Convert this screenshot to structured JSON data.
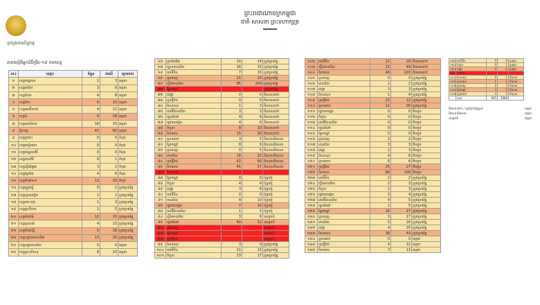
{
  "header": {
    "kingdom": "ព្រះរាជាណាចក្រកម្ពុជា",
    "motto": "ជាតិ សាសនា ព្រះមហាក្សត្រ",
    "emblem_caption": "ក្រសួងពាណិជ្ជកម្ម",
    "doc_title": "តារាងស្ថិតិអ្នកជំងឺកូវីដ-១៩ តាមខេត្ត"
  },
  "table1": {
    "headers": [
      "ល.រ",
      "ឈ្មោះ",
      "ចំនួន",
      "ករណី",
      "ស្ថានភាព"
    ],
    "rows": [
      {
        "no": "១",
        "name": "ខេត្តកណ្ដាល",
        "a": "1",
        "b": "3",
        "s": "ធម្មតា",
        "tone": "light"
      },
      {
        "no": "២",
        "name": "ខេត្តតាកែវ",
        "a": "3",
        "b": "6",
        "s": "ធម្មតា",
        "tone": "light"
      },
      {
        "no": "៣",
        "name": "ខេត្តកំពត",
        "a": "4",
        "b": "8",
        "s": "ធម្មតា",
        "tone": "light"
      },
      {
        "no": "៤",
        "name": "ខេត្តកែប",
        "a": "6",
        "b": "10",
        "s": "ធម្មតា",
        "tone": "orange"
      },
      {
        "no": "៥",
        "name": "ខេត្តពោធិ៍សាត់",
        "a": "4",
        "b": "11",
        "s": "ធម្មតា",
        "tone": "light"
      },
      {
        "no": "៦",
        "name": "ខេត្តពុំ",
        "a": "6",
        "b": "16",
        "s": "ធម្មតា",
        "tone": "orange"
      },
      {
        "no": "៧",
        "name": "ខេត្តបាត់ដំបង",
        "a": "18",
        "b": "33",
        "s": "ធម្មតា",
        "tone": "light"
      },
      {
        "no": "៨",
        "name": "ភ្នំពេញ",
        "a": "45",
        "b": "80",
        "s": "ធម្មតា",
        "tone": "orange"
      },
      {
        "no": "៩",
        "name": "ខេត្តក្រចេះ",
        "a": "0",
        "b": "0",
        "s": "កំពុង",
        "tone": "light"
      },
      {
        "no": "១០",
        "name": "ខេត្តសៀមរាប",
        "a": "0",
        "b": "0",
        "s": "កំពុង",
        "tone": "light"
      },
      {
        "no": "១១",
        "name": "ខេត្តមណ្ឌលគិរី",
        "a": "0",
        "b": "0",
        "s": "កំពុង",
        "tone": "light"
      },
      {
        "no": "១២",
        "name": "ខេត្តរតនគិរី",
        "a": "0",
        "b": "1",
        "s": "កំពុង",
        "tone": "light"
      },
      {
        "no": "១៣",
        "name": "ខេត្តស្ទឹងត្រែង",
        "a": "3",
        "b": "2",
        "s": "កំពុង",
        "tone": "light"
      },
      {
        "no": "១៤",
        "name": "ខេត្តព្រៃវែង",
        "a": "4",
        "b": "6",
        "s": "កំពុង",
        "tone": "light"
      },
      {
        "no": "១៥",
        "name": "ខេត្តកំពង់ចាម",
        "a": "12",
        "b": "15",
        "s": "កំពុង",
        "tone": "orange"
      },
      {
        "no": "១៦",
        "name": "ខេត្តត្បូងឃ្មុំ",
        "a": "0",
        "b": "1",
        "s": "ប្រុងប្រយ័ត្ន",
        "tone": "light"
      },
      {
        "no": "១៧",
        "name": "ខេត្តស្វាយរៀង",
        "a": "1",
        "b": "1",
        "s": "ប្រុងប្រយ័ត្ន",
        "tone": "light"
      },
      {
        "no": "១៨",
        "name": "ខេត្តកោះកុង",
        "a": "1",
        "b": "3",
        "s": "ប្រុងប្រយ័ត្ន",
        "tone": "light"
      },
      {
        "no": "១៩",
        "name": "ខេត្តព្រះវិហារ",
        "a": "1",
        "b": "5",
        "s": "ប្រុងប្រយ័ត្ន",
        "tone": "light"
      },
      {
        "no": "២០",
        "name": "ខេត្តកំពង់ធំ",
        "a": "12",
        "b": "15",
        "s": "ប្រុងប្រយ័ត្ន",
        "tone": "orange"
      },
      {
        "no": "២១",
        "name": "ខេត្តពុរសាត់",
        "a": "4",
        "b": "15",
        "s": "ប្រុងប្រយ័ត្ន",
        "tone": "light"
      },
      {
        "no": "២២",
        "name": "ខេត្តកំពង់ស្ពឺ",
        "a": "5",
        "b": "16",
        "s": "ប្រុងប្រយ័ត្ន",
        "tone": "orange"
      },
      {
        "no": "២៣",
        "name": "ខេត្តបន្ទាយមានជ័យ",
        "a": "13",
        "b": "20",
        "s": "ប្រុងប្រយ័ត្ន",
        "tone": "orange"
      },
      {
        "no": "២៤",
        "name": "ខេត្តឧត្តរមានជ័យ",
        "a": "0",
        "b": "0",
        "s": "ធម្មតា",
        "tone": "light"
      },
      {
        "no": "២៥",
        "name": "ខេត្តព្រះសីហនុ",
        "a": "8",
        "b": "20",
        "s": "ធម្មតា",
        "tone": "light"
      }
    ]
  },
  "table2": {
    "rows": [
      {
        "no": "៦៦",
        "name": "ត្រពាំងវែង",
        "a": "10",
        "b": "14",
        "s": "ប្រុងប្រយ័ត្ន",
        "tone": "light"
      },
      {
        "no": "៦៧",
        "name": "ស្ពានមានជ័យ",
        "a": "16",
        "b": "15",
        "s": "ប្រុងប្រយ័ត្ន",
        "tone": "light"
      },
      {
        "no": "៦៨",
        "name": "ពោធិ៍ចិន",
        "a": "7",
        "b": "20",
        "s": "ប្រុងប្រយ័ត្ន",
        "tone": "light"
      },
      {
        "no": "៦៩",
        "name": "ដូនពេញ",
        "a": "21",
        "b": "24",
        "s": "ប្រុងប្រយ័ត្ន",
        "tone": "orange"
      },
      {
        "no": "៧០",
        "name": "ស្ទឹងមានជ័យ",
        "a": "85",
        "b": "254",
        "s": "ប្រុងប្រយ័ត្ន",
        "tone": "orange"
      },
      {
        "no": "៧១",
        "name": "ព្រែកព្នៅ",
        "a": "",
        "b": "",
        "s": "ប្រុងប្រយ័ត្ន",
        "tone": "red"
      },
      {
        "no": "៧២",
        "name": "ដង្កោ",
        "a": "0",
        "b": "0",
        "s": "ពិសេសពាក់",
        "tone": "light"
      },
      {
        "no": "៧៣",
        "name": "ឬស្សីកែវ",
        "a": "0",
        "b": "0",
        "s": "ពិសេសពាក់",
        "tone": "light"
      },
      {
        "no": "៧៤",
        "name": "សែនសុខ",
        "a": "1",
        "b": "3",
        "s": "ពិសេសពាក់",
        "tone": "light"
      },
      {
        "no": "៧៥",
        "name": "ពោធិ៍សែនជ័យ",
        "a": "3",
        "b": "3",
        "s": "ពិសេសពាក់",
        "tone": "light"
      },
      {
        "no": "៧៦",
        "name": "ច្បារអំពៅ",
        "a": "4",
        "b": "6",
        "s": "ពិសេសពាក់",
        "tone": "light"
      },
      {
        "no": "៧៧",
        "name": "ជ្រោយចង្វារ",
        "a": "4",
        "b": "8",
        "s": "ពិសេសពាក់",
        "tone": "light"
      },
      {
        "no": "៧៨",
        "name": "កំបូល",
        "a": "8",
        "b": "10",
        "s": "ពិសេសពាក់",
        "tone": "orange"
      },
      {
        "no": "៧៩",
        "name": "ចំការមន",
        "a": "15",
        "b": "30",
        "s": "ពិសេសពាក់",
        "tone": "orange"
      },
      {
        "no": "៨០",
        "name": "ទួលគោក",
        "a": "3",
        "b": "5",
        "s": "ពិសេសពិសេស",
        "tone": "light"
      },
      {
        "no": "៨១",
        "name": "ព្រែកព្នៅ",
        "a": "8",
        "b": "9",
        "s": "ពិសេសពិសេស",
        "tone": "light"
      },
      {
        "no": "៨២",
        "name": "ដូនពេញ",
        "a": "0",
        "b": "5",
        "s": "ពិសេសពិសេស",
        "tone": "light"
      },
      {
        "no": "៨៣",
        "name": "មានជ័យ",
        "a": "18",
        "b": "22",
        "s": "ពិសេសពិសេស",
        "tone": "orange"
      },
      {
        "no": "៨៤",
        "name": "ឫស្សីកែវ",
        "a": "42",
        "b": "60",
        "s": "ពិសេសពិសេស",
        "tone": "orange"
      },
      {
        "no": "៨៥",
        "name": "ចំការមន",
        "a": "45",
        "b": "57",
        "s": "ពិសេសពិសេស",
        "tone": "orange"
      },
      {
        "no": "៨៦",
        "name": "សែនសុខ",
        "a": "",
        "b": "",
        "s": "",
        "tone": "red"
      },
      {
        "no": "៨៧",
        "name": "ព្រែកព្នៅ",
        "a": "0",
        "b": "0",
        "s": "ប៉ុទ្ធាស៊ូ",
        "tone": "light"
      },
      {
        "no": "៨៨",
        "name": "កំបូល",
        "a": "4",
        "b": "4",
        "s": "ប៉ុទ្ធាស៊ូ",
        "tone": "light"
      },
      {
        "no": "៨៩",
        "name": "ដង្កោ",
        "a": "3",
        "b": "6",
        "s": "ប៉ុទ្ធាស៊ូ",
        "tone": "light"
      },
      {
        "no": "៩០",
        "name": "ពោធិ៍ចិន",
        "a": "0",
        "b": "0",
        "s": "ប៉ុទ្ធាស៊ូ",
        "tone": "light"
      },
      {
        "no": "៩១",
        "name": "មានជ័យ",
        "a": "4",
        "b": "10",
        "s": "ប៉ុទ្ធាស៊ូ",
        "tone": "light"
      },
      {
        "no": "៩២",
        "name": "ជ្រោយចង្វារ",
        "a": "7",
        "b": "10",
        "s": "ប៉ុទ្ធាស៊ូ",
        "tone": "orange"
      },
      {
        "no": "៩៣",
        "name": "ពោធិ៍សែនជ័យ",
        "a": "1",
        "b": "5",
        "s": "ប៉ុទ្ធាស៊ូ",
        "tone": "light"
      },
      {
        "no": "៩៤",
        "name": "ស្ទឹងមានជ័យ",
        "a": "3",
        "b": "6",
        "s": "ឧស្សាហ៍",
        "tone": "light"
      },
      {
        "no": "៩៥",
        "name": "ច្បារអំពៅ",
        "a": "40",
        "b": "52",
        "s": "ឧស្សាហ៍",
        "tone": "orange"
      },
      {
        "no": "៩៦",
        "name": "ដូនពេញ",
        "a": "",
        "b": "",
        "s": "ឧស្សាហ៍",
        "tone": "red"
      },
      {
        "no": "៩៧",
        "name": "ព្រែកព្នៅ",
        "a": "",
        "b": "",
        "s": "ឧស្សាហ៍",
        "tone": "red"
      },
      {
        "no": "៩៨",
        "name": "ឫស្សីកែវ",
        "a": "",
        "b": "",
        "s": "ឧស្សាហ៍",
        "tone": "red"
      },
      {
        "no": "៩៩",
        "name": "សែនសុខ",
        "a": "3",
        "b": "9",
        "s": "ប្រុងប្រយ័ត្ន",
        "tone": "light"
      },
      {
        "no": "១០០",
        "name": "ពោធិ៍ចិន",
        "a": "11",
        "b": "13",
        "s": "ប្រុងប្រយ័ត្ន",
        "tone": "light"
      },
      {
        "no": "១០១",
        "name": "កំបូល",
        "a": "13",
        "b": "17",
        "s": "ប្រុងប្រយ័ត្ន",
        "tone": "light"
      }
    ]
  },
  "table3": {
    "rows": [
      {
        "no": "១០២",
        "name": "ពោធិ៍ចិន",
        "a": "22",
        "b": "26",
        "s": "ពិសេសពាក់",
        "tone": "orange"
      },
      {
        "no": "១០៣",
        "name": "ស្ទឹងមានជ័យ",
        "a": "23",
        "b": "49",
        "s": "ពិសេសពាក់",
        "tone": "orange"
      },
      {
        "no": "១០៤",
        "name": "ចំការមន",
        "a": "46",
        "b": "103",
        "s": "ពិសេសពាក់",
        "tone": "orange"
      },
      {
        "no": "១០៥",
        "name": "ដូនពេញ",
        "a": "0",
        "b": "0",
        "s": "ប្រុងប្រយ័ត្ន",
        "tone": "light"
      },
      {
        "no": "១០៦",
        "name": "មានជ័យ",
        "a": "1",
        "b": "2",
        "s": "ប្រុងប្រយ័ត្ន",
        "tone": "light"
      },
      {
        "no": "១០៧",
        "name": "ដង្កោ",
        "a": "3",
        "b": "3",
        "s": "ប្រុងប្រយ័ត្ន",
        "tone": "light"
      },
      {
        "no": "១០៨",
        "name": "សែនសុខ",
        "a": "1",
        "b": "4",
        "s": "ប្រុងប្រយ័ត្ន",
        "tone": "light"
      },
      {
        "no": "១០៩",
        "name": "ឫស្សីកែវ",
        "a": "13",
        "b": "12",
        "s": "ប្រុងប្រយ័ត្ន",
        "tone": "orange"
      },
      {
        "no": "១១០",
        "name": "ទួលគោក",
        "a": "11",
        "b": "26",
        "s": "ប្រុងប្រយ័ត្ន",
        "tone": "orange"
      },
      {
        "no": "១១១",
        "name": "ជ្រោយចង្វារ",
        "a": "0",
        "b": "0",
        "s": "តិចតួច",
        "tone": "light"
      },
      {
        "no": "១១២",
        "name": "កំបូល",
        "a": "0",
        "b": "0",
        "s": "តិចតួច",
        "tone": "light"
      },
      {
        "no": "១១៣",
        "name": "ពោធិ៍សែនជ័យ",
        "a": "0",
        "b": "0",
        "s": "តិចតួច",
        "tone": "light"
      },
      {
        "no": "១១៤",
        "name": "ច្បារអំពៅ",
        "a": "0",
        "b": "0",
        "s": "តិចតួច",
        "tone": "light"
      },
      {
        "no": "១១៥",
        "name": "ព្រែកព្នៅ",
        "a": "0",
        "b": "0",
        "s": "តិចតួច",
        "tone": "light"
      },
      {
        "no": "១១៦",
        "name": "ដូនពេញ",
        "a": "2",
        "b": "2",
        "s": "តិចតួច",
        "tone": "light"
      },
      {
        "no": "១១៧",
        "name": "មានជ័យ",
        "a": "3",
        "b": "3",
        "s": "តិចតួច",
        "tone": "light"
      },
      {
        "no": "១១៨",
        "name": "ដង្កោ",
        "a": "2",
        "b": "3",
        "s": "តិចតួច",
        "tone": "light"
      },
      {
        "no": "១១៩",
        "name": "សែនសុខ",
        "a": "4",
        "b": "6",
        "s": "តិចតួច",
        "tone": "light"
      },
      {
        "no": "១២០",
        "name": "ទួលគោក",
        "a": "6",
        "b": "6",
        "s": "តិចតួច",
        "tone": "light"
      },
      {
        "no": "១២១",
        "name": "ឫស្សីកែវ",
        "a": "25",
        "b": "27",
        "s": "តិចតួច",
        "tone": "orange"
      },
      {
        "no": "១២២",
        "name": "ចំការមន",
        "a": "66",
        "b": "100",
        "s": "តិចតួច",
        "tone": "orange"
      },
      {
        "no": "១២៣",
        "name": "ពោធិ៍ចិន",
        "a": "2",
        "b": "2",
        "s": "ប្រុងប្រយ័ត្ន",
        "tone": "light"
      },
      {
        "no": "១២៤",
        "name": "ស្ទឹងមានជ័យ",
        "a": "2",
        "b": "3",
        "s": "ប្រុងប្រយ័ត្ន",
        "tone": "light"
      },
      {
        "no": "១២៥",
        "name": "កំបូល",
        "a": "2",
        "b": "3",
        "s": "ប្រុងប្រយ័ត្ន",
        "tone": "light"
      },
      {
        "no": "១២៦",
        "name": "ជ្រោយចង្វារ",
        "a": "3",
        "b": "4",
        "s": "ប្រុងប្រយ័ត្ន",
        "tone": "light"
      },
      {
        "no": "១២៧",
        "name": "ពោធិ៍សែនជ័យ",
        "a": "4",
        "b": "5",
        "s": "ប្រុងប្រយ័ត្ន",
        "tone": "light"
      },
      {
        "no": "១២៨",
        "name": "ច្បារអំពៅ",
        "a": "2",
        "b": "5",
        "s": "ប្រុងប្រយ័ត្ន",
        "tone": "light"
      },
      {
        "no": "១២៩",
        "name": "ព្រែកព្នៅ",
        "a": "16",
        "b": "17",
        "s": "ប្រុងប្រយ័ត្ន",
        "tone": "orange"
      },
      {
        "no": "១៣០",
        "name": "ដូនពេញ",
        "a": "3",
        "b": "17",
        "s": "ប្រុងប្រយ័ត្ន",
        "tone": "light"
      },
      {
        "no": "១៣១",
        "name": "មានជ័យ",
        "a": "5",
        "b": "16",
        "s": "ប្រុងប្រយ័ត្ន",
        "tone": "light"
      },
      {
        "no": "១៣២",
        "name": "ដង្កោ",
        "a": "4",
        "b": "25",
        "s": "ប្រុងប្រយ័ត្ន",
        "tone": "light"
      },
      {
        "no": "១៣៣",
        "name": "សែនសុខ",
        "a": "38",
        "b": "43",
        "s": "ប្រុងប្រយ័ត្ន",
        "tone": "orange"
      },
      {
        "no": "១៣៤",
        "name": "ទួលគោក",
        "a": "0",
        "b": "0",
        "s": "ធម្មតា",
        "tone": "light"
      },
      {
        "no": "១៣៥",
        "name": "ឫស្សីកែវ",
        "a": "4",
        "b": "12",
        "s": "ធម្មតា",
        "tone": "light"
      },
      {
        "no": "១៣៦",
        "name": "ចំការមន",
        "a": "7",
        "b": "13",
        "s": "ធម្មតា",
        "tone": "light"
      }
    ]
  },
  "table4": {
    "rows": [
      {
        "no": "១៣៧",
        "name": "ពោធិ៍ចិន",
        "a": "0",
        "b": "0",
        "s": "ប្រុងប្រ",
        "tone": "light"
      },
      {
        "no": "១៣៨",
        "name": "កំបូល",
        "a": "0",
        "b": "1",
        "s": "ប្រុងប្រ",
        "tone": "light"
      },
      {
        "no": "១៣៩",
        "name": "ដង្កោ",
        "a": "0",
        "b": "1",
        "s": "ប្រុងប្រ",
        "tone": "orange"
      },
      {
        "no": "១៤០",
        "name": "មានជ័យ",
        "a": "",
        "b": "",
        "s": "",
        "tone": "red"
      },
      {
        "no": "១៤១",
        "name": "សែនសុខ",
        "a": "0",
        "b": "1",
        "s": "ពិសេស",
        "tone": "light"
      },
      {
        "no": "១៤២",
        "name": "ទួលគោក",
        "a": "1",
        "b": "1",
        "s": "ពិសេស",
        "tone": "orange"
      },
      {
        "no": "១៤៣",
        "name": "ដូនពេញ",
        "a": "2",
        "b": "3",
        "s": "ពិសេស",
        "tone": "light"
      },
      {
        "no": "១៤៤",
        "name": "ព្រែកព្នៅ",
        "a": "3",
        "b": "3",
        "s": "ពិសេស",
        "tone": "orange"
      },
      {
        "no": "១៤៥",
        "name": "ច្បារអំពៅ",
        "a": "3",
        "b": "5",
        "s": "ពិសេស",
        "tone": "light"
      },
      {
        "no": "",
        "name": "សរុប",
        "a": "965",
        "b": "1888",
        "s": "",
        "tone": "none"
      }
    ]
  },
  "notes": [
    {
      "label": "ពិសេសពាក់ / ប្រុងប្រយ័ត្នខ្ពស់",
      "value": "ធម្មតា"
    },
    {
      "label": "ពិសេសពិសេស",
      "value": "ធម្មតា"
    },
    {
      "label": "ឧស្សាហ៍",
      "value": "ធម្មតា"
    }
  ]
}
